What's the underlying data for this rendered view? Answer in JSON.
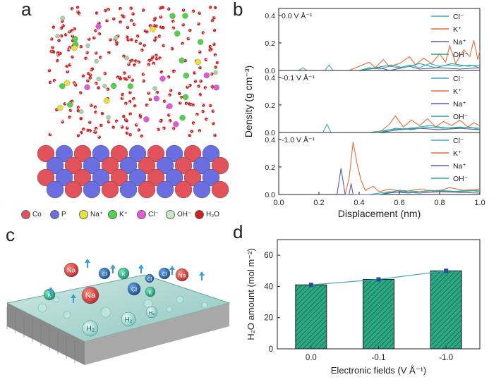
{
  "panels": {
    "a": "a",
    "b": "b",
    "c": "c",
    "d": "d"
  },
  "panel_a": {
    "legend": [
      {
        "label": "Co",
        "color": "#e2525a"
      },
      {
        "label": "P",
        "color": "#6a6ee0"
      },
      {
        "label": "Na⁺",
        "color": "#e8e23a"
      },
      {
        "label": "K⁺",
        "color": "#52d24a"
      },
      {
        "label": "Cl⁻",
        "color": "#e05ad8"
      },
      {
        "label": "OH⁻",
        "color": "#c8e6c8"
      },
      {
        "label": "H₂O",
        "color": "#cc2222"
      }
    ]
  },
  "panel_c": {
    "bubble_labels": [
      "Na",
      "Cl",
      "K",
      "Cl",
      "K",
      "Cl",
      "Na",
      "K",
      "Na",
      "Cl",
      "H₂",
      "H₂",
      "H₂"
    ]
  },
  "chart_data": [
    {
      "type": "line",
      "panel": "b",
      "ylabel": "Density (g cm⁻³)",
      "xlabel": "Displacement (nm)",
      "xlim": [
        0,
        1.0
      ],
      "xticks": [
        "0.0",
        "0.2",
        "0.4",
        "0.6",
        "0.8",
        "1.0"
      ],
      "subplots": [
        {
          "label": "0.0 V Å⁻¹",
          "ylim": [
            0,
            0.45
          ],
          "yticks": [
            "0.0",
            "0.2",
            "0.4"
          ],
          "series": [
            {
              "name": "Cl⁻",
              "color": "#3aa7c8",
              "points": [
                [
                  0.1,
                  0
                ],
                [
                  0.12,
                  0.02
                ],
                [
                  0.14,
                  0
                ],
                [
                  0.23,
                  0
                ],
                [
                  0.25,
                  0.04
                ],
                [
                  0.27,
                  0
                ],
                [
                  0.4,
                  0
                ],
                [
                  0.45,
                  0.02
                ],
                [
                  0.5,
                  0.01
                ],
                [
                  0.55,
                  0.03
                ],
                [
                  0.6,
                  0.02
                ],
                [
                  0.65,
                  0.04
                ],
                [
                  0.7,
                  0.02
                ],
                [
                  0.75,
                  0.05
                ],
                [
                  0.8,
                  0.03
                ],
                [
                  0.85,
                  0.04
                ],
                [
                  0.9,
                  0.03
                ],
                [
                  0.95,
                  0.04
                ],
                [
                  1.0,
                  0.02
                ]
              ]
            },
            {
              "name": "K⁺",
              "color": "#ee6a3a",
              "points": [
                [
                  0.35,
                  0
                ],
                [
                  0.4,
                  0.03
                ],
                [
                  0.45,
                  0.06
                ],
                [
                  0.48,
                  0.02
                ],
                [
                  0.52,
                  0.08
                ],
                [
                  0.55,
                  0.03
                ],
                [
                  0.6,
                  0.05
                ],
                [
                  0.65,
                  0.1
                ],
                [
                  0.68,
                  0.04
                ],
                [
                  0.72,
                  0.09
                ],
                [
                  0.76,
                  0.05
                ],
                [
                  0.8,
                  0.12
                ],
                [
                  0.83,
                  0.06
                ],
                [
                  0.85,
                  0.18
                ],
                [
                  0.88,
                  0.05
                ],
                [
                  0.92,
                  0.15
                ],
                [
                  0.95,
                  0.1
                ],
                [
                  0.97,
                  0.22
                ],
                [
                  0.99,
                  0.08
                ],
                [
                  1.0,
                  0.14
                ]
              ]
            },
            {
              "name": "Na⁺",
              "color": "#5a5aa8",
              "points": [
                [
                  0.4,
                  0
                ],
                [
                  0.5,
                  0.02
                ],
                [
                  0.55,
                  0
                ],
                [
                  0.65,
                  0.03
                ],
                [
                  0.7,
                  0.01
                ],
                [
                  0.8,
                  0.02
                ],
                [
                  0.9,
                  0.01
                ],
                [
                  1.0,
                  0.02
                ]
              ]
            },
            {
              "name": "OH⁻",
              "color": "#2aa888",
              "points": [
                [
                  0.4,
                  0
                ],
                [
                  0.48,
                  0.02
                ],
                [
                  0.56,
                  0.04
                ],
                [
                  0.62,
                  0.02
                ],
                [
                  0.7,
                  0.05
                ],
                [
                  0.78,
                  0.02
                ],
                [
                  0.86,
                  0.05
                ],
                [
                  0.94,
                  0.03
                ],
                [
                  1.0,
                  0.04
                ]
              ]
            }
          ]
        },
        {
          "label": "-0.1 V Å⁻¹",
          "ylim": [
            0,
            0.45
          ],
          "yticks": [
            "0.0",
            "0.2",
            "0.4"
          ],
          "series": [
            {
              "name": "Cl⁻",
              "color": "#3aa7c8",
              "points": [
                [
                  0.22,
                  0
                ],
                [
                  0.24,
                  0.06
                ],
                [
                  0.26,
                  0
                ],
                [
                  0.45,
                  0
                ],
                [
                  0.55,
                  0.02
                ],
                [
                  0.65,
                  0.03
                ],
                [
                  0.75,
                  0.05
                ],
                [
                  0.85,
                  0.03
                ],
                [
                  0.95,
                  0.04
                ],
                [
                  1.0,
                  0.02
                ]
              ]
            },
            {
              "name": "K⁺",
              "color": "#ee6a3a",
              "points": [
                [
                  0.5,
                  0
                ],
                [
                  0.55,
                  0.06
                ],
                [
                  0.58,
                  0.12
                ],
                [
                  0.62,
                  0.04
                ],
                [
                  0.66,
                  0.09
                ],
                [
                  0.7,
                  0.05
                ],
                [
                  0.74,
                  0.1
                ],
                [
                  0.78,
                  0.04
                ],
                [
                  0.82,
                  0.08
                ],
                [
                  0.86,
                  0.05
                ],
                [
                  0.9,
                  0.09
                ],
                [
                  0.94,
                  0.04
                ],
                [
                  0.97,
                  0.07
                ],
                [
                  1.0,
                  0.05
                ]
              ]
            },
            {
              "name": "Na⁺",
              "color": "#5a5aa8",
              "points": [
                [
                  0.5,
                  0
                ],
                [
                  0.6,
                  0.02
                ],
                [
                  0.7,
                  0.03
                ],
                [
                  0.8,
                  0.02
                ],
                [
                  0.9,
                  0.03
                ],
                [
                  1.0,
                  0.02
                ]
              ]
            },
            {
              "name": "OH⁻",
              "color": "#2aa888",
              "points": [
                [
                  0.5,
                  0
                ],
                [
                  0.58,
                  0.03
                ],
                [
                  0.66,
                  0.02
                ],
                [
                  0.74,
                  0.04
                ],
                [
                  0.82,
                  0.03
                ],
                [
                  0.9,
                  0.04
                ],
                [
                  1.0,
                  0.03
                ]
              ]
            }
          ]
        },
        {
          "label": "-1.0 V Å⁻¹",
          "ylim": [
            0,
            0.45
          ],
          "yticks": [
            "0.0",
            "0.2",
            "0.4"
          ],
          "series": [
            {
              "name": "Cl⁻",
              "color": "#3aa7c8",
              "points": [
                [
                  0.45,
                  0
                ],
                [
                  0.55,
                  0.02
                ],
                [
                  0.65,
                  0.01
                ],
                [
                  0.75,
                  0.03
                ],
                [
                  0.85,
                  0.02
                ],
                [
                  0.95,
                  0.03
                ],
                [
                  1.0,
                  0.02
                ]
              ]
            },
            {
              "name": "K⁺",
              "color": "#ee6a3a",
              "points": [
                [
                  0.33,
                  0
                ],
                [
                  0.35,
                  0.12
                ],
                [
                  0.37,
                  0.38
                ],
                [
                  0.39,
                  0.22
                ],
                [
                  0.41,
                  0.1
                ],
                [
                  0.43,
                  0.03
                ],
                [
                  0.47,
                  0.06
                ],
                [
                  0.5,
                  0.02
                ],
                [
                  0.55,
                  0.04
                ],
                [
                  0.62,
                  0.02
                ],
                [
                  0.7,
                  0.04
                ],
                [
                  0.78,
                  0.02
                ],
                [
                  0.85,
                  0.05
                ],
                [
                  0.92,
                  0.03
                ],
                [
                  1.0,
                  0.04
                ]
              ]
            },
            {
              "name": "Na⁺",
              "color": "#5a5aa8",
              "points": [
                [
                  0.29,
                  0
                ],
                [
                  0.31,
                  0.19
                ],
                [
                  0.33,
                  0
                ],
                [
                  0.35,
                  0
                ],
                [
                  0.36,
                  0.08
                ],
                [
                  0.37,
                  0
                ],
                [
                  0.5,
                  0
                ],
                [
                  0.6,
                  0.02
                ],
                [
                  0.7,
                  0.01
                ],
                [
                  0.8,
                  0.02
                ],
                [
                  1.0,
                  0.01
                ]
              ]
            },
            {
              "name": "OH⁻",
              "color": "#2aa888",
              "points": [
                [
                  0.5,
                  0
                ],
                [
                  0.6,
                  0.03
                ],
                [
                  0.7,
                  0.02
                ],
                [
                  0.8,
                  0.03
                ],
                [
                  0.9,
                  0.02
                ],
                [
                  1.0,
                  0.03
                ]
              ]
            }
          ]
        }
      ]
    },
    {
      "type": "bar",
      "panel": "d",
      "categories": [
        "0.0",
        "-0.1",
        "-1.0"
      ],
      "values": [
        41,
        44.5,
        50
      ],
      "ylabel": "H₂O amount (mol m⁻²)",
      "xlabel": "Electronic fields (V Å⁻¹)",
      "ylim": [
        0,
        70
      ],
      "yticks": [
        "0",
        "20",
        "40",
        "60"
      ],
      "bar_color": "#2aa880",
      "line_color": "#3a9ec8",
      "marker_color": "#2a4aa0"
    }
  ]
}
